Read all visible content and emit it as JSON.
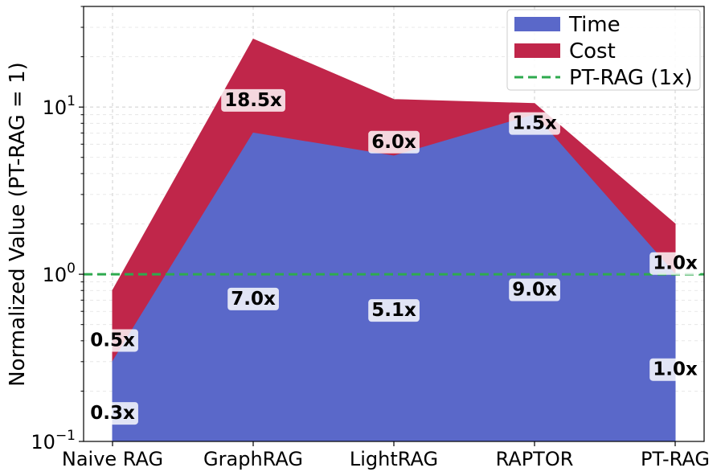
{
  "chart_data": {
    "type": "area",
    "categories": [
      "Naive RAG",
      "GraphRAG",
      "LightRAG",
      "RAPTOR",
      "PT-RAG"
    ],
    "series": [
      {
        "name": "Time",
        "values": [
          0.3,
          7.0,
          5.1,
          9.0,
          1.0
        ],
        "labels": [
          "0.3x",
          "7.0x",
          "5.1x",
          "9.0x",
          "1.0x"
        ],
        "color": "#5A68C9"
      },
      {
        "name": "Cost",
        "values": [
          0.5,
          18.5,
          6.0,
          1.5,
          1.0
        ],
        "labels": [
          "0.5x",
          "18.5x",
          "6.0x",
          "1.5x",
          "1.0x"
        ],
        "color": "#C0264A"
      }
    ],
    "stacked": true,
    "reference_line": {
      "name": "PT-RAG (1x)",
      "value": 1,
      "color": "#2EAA4E"
    },
    "ylabel": "Normalized Value (PT-RAG = 1)",
    "xlabel": "",
    "title": "",
    "yscale": "log",
    "ylim": [
      0.1,
      40
    ],
    "yticks": [
      {
        "value": 0.1,
        "base": "10",
        "exp": "−1"
      },
      {
        "value": 1,
        "base": "10",
        "exp": "0"
      },
      {
        "value": 10,
        "base": "10",
        "exp": "1"
      }
    ],
    "grid": true,
    "legend_position": "top-right"
  }
}
